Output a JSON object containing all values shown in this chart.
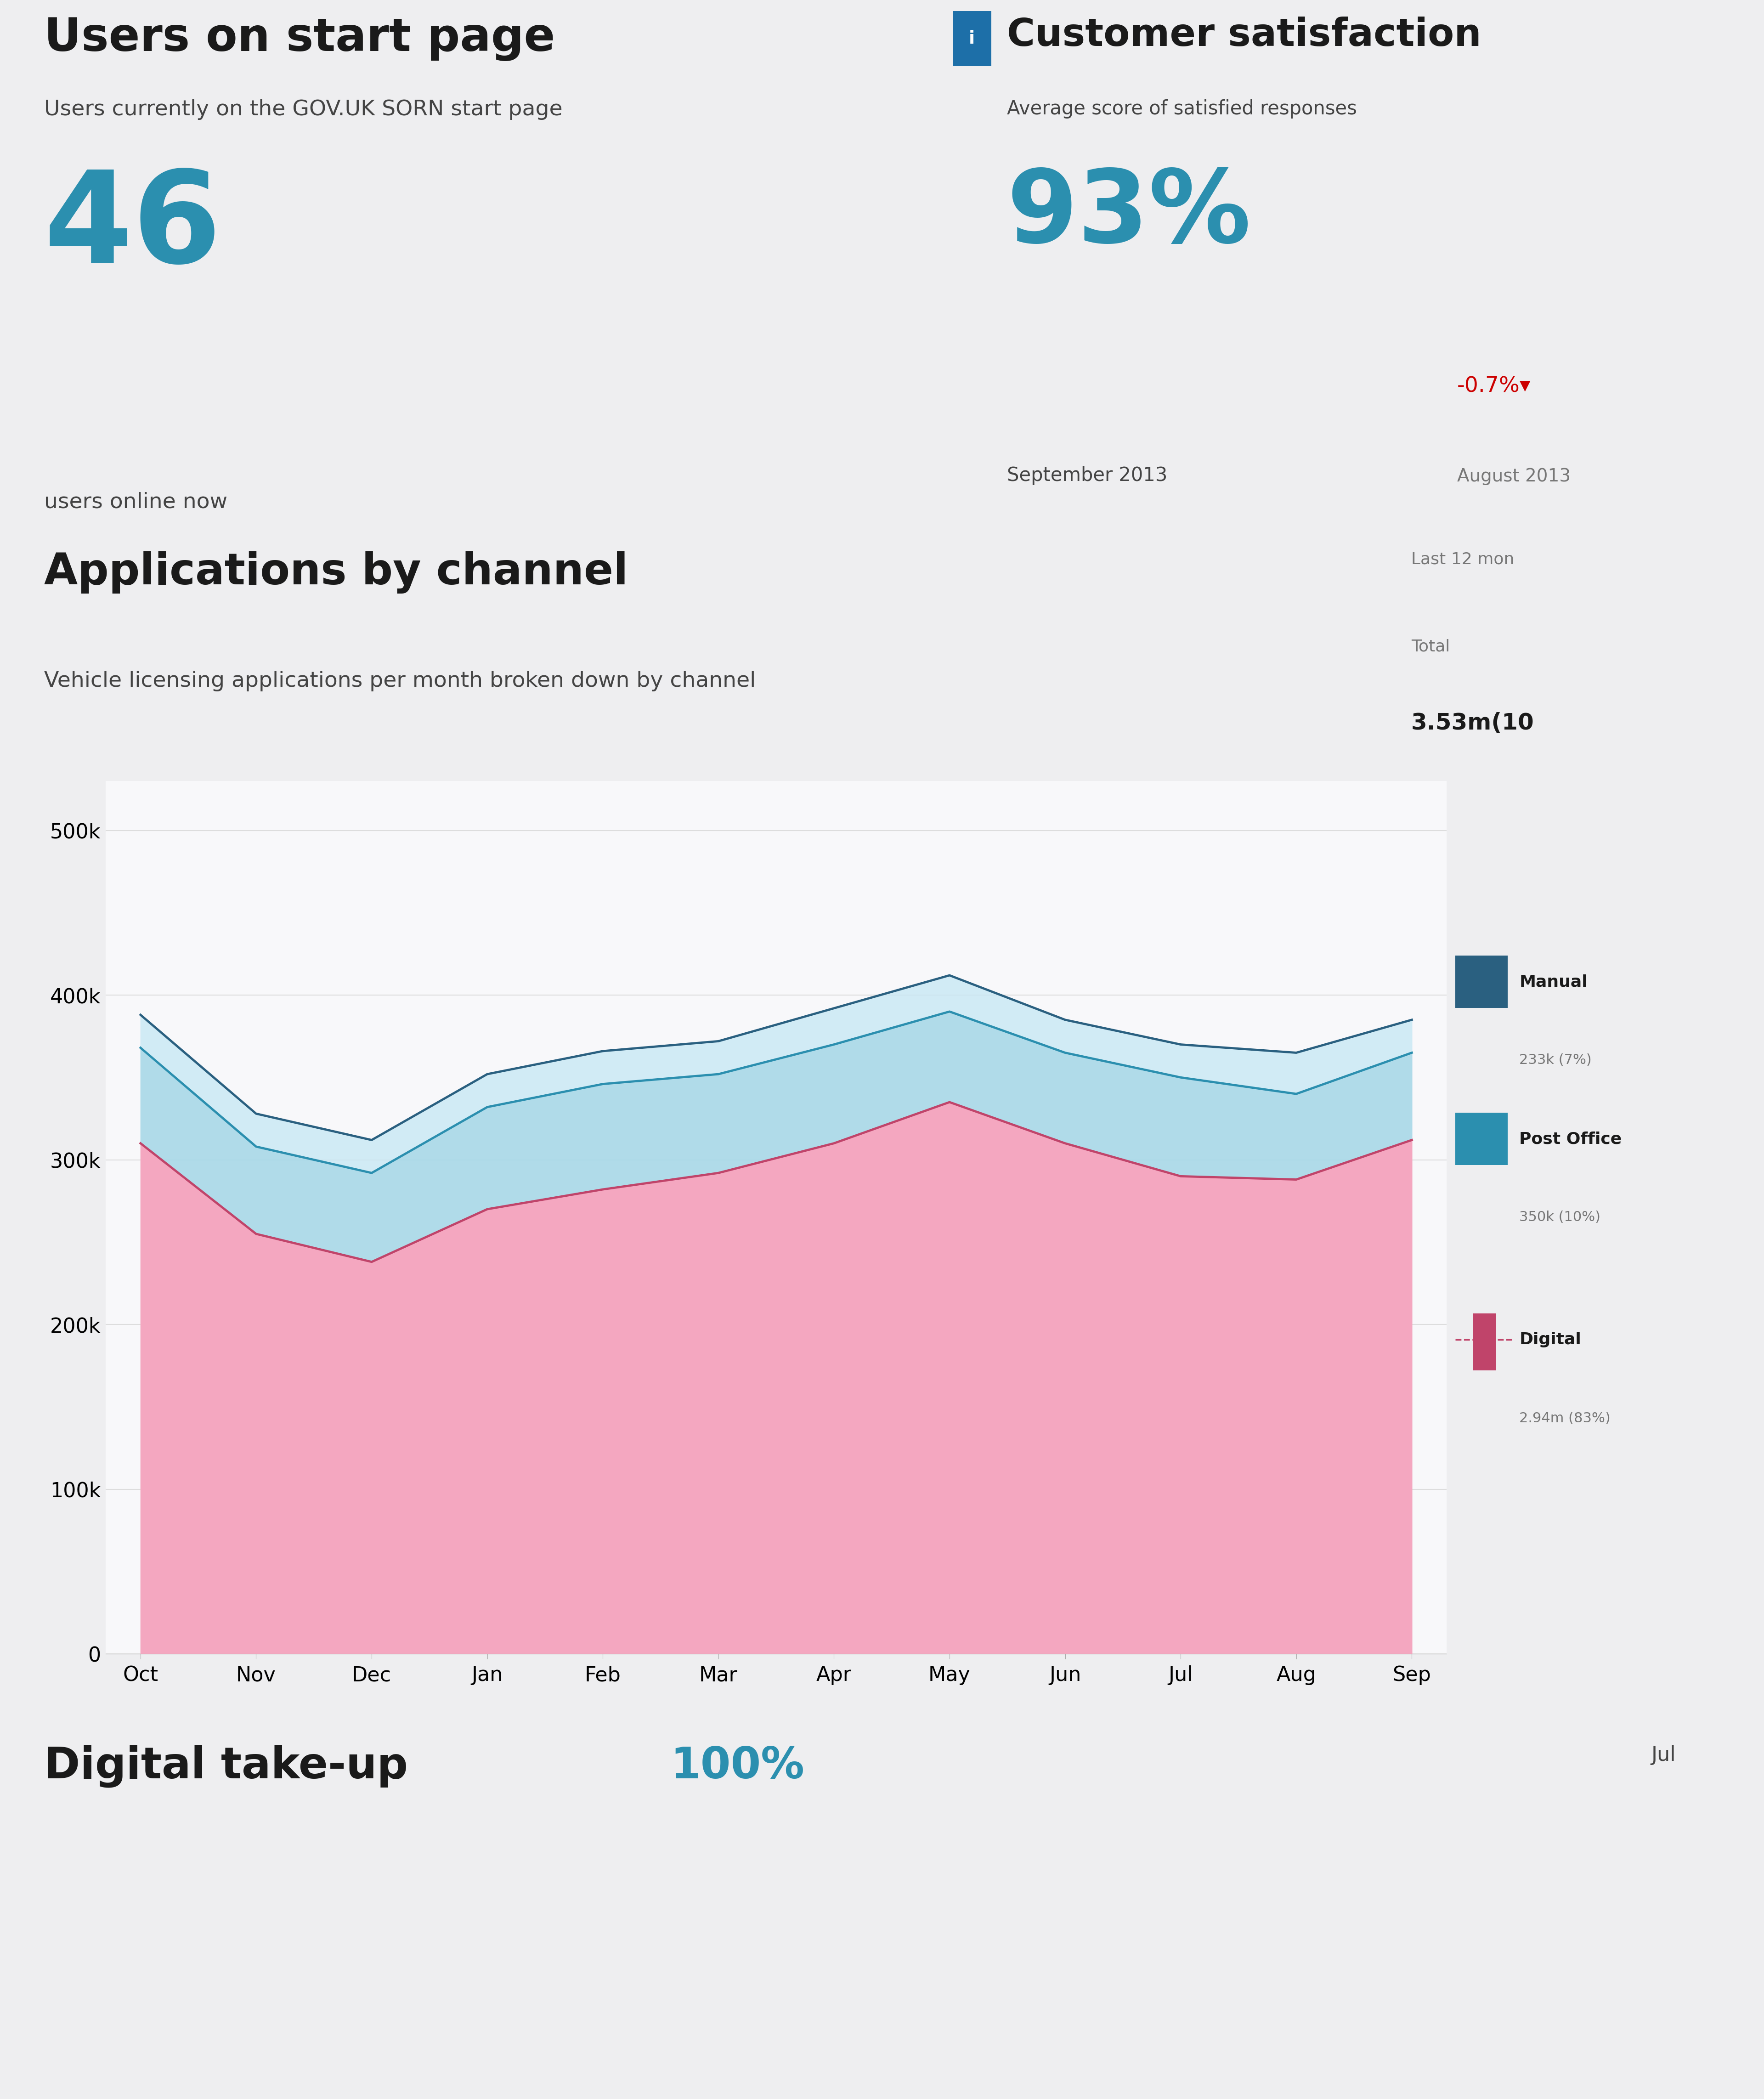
{
  "bg_color": "#eeeef0",
  "white": "#f8f8fa",
  "teal_color": "#2B8FAF",
  "dark_text": "#1a1a1a",
  "mid_text": "#444444",
  "light_text": "#777777",
  "red_text": "#cc0000",
  "info_blue": "#1d6fa8",
  "section1_title": "Users on start page",
  "section1_subtitle": "Users currently on the GOV.UK SORN start page",
  "section1_value": "46",
  "section1_label": "users online now",
  "section2_title": "Customer satisfaction",
  "section2_subtitle": "Average score of satisfied responses",
  "section2_value": "93%",
  "section2_date": "September 2013",
  "section2_change": "-0.7%▾",
  "section2_change_label": "August 2013",
  "chart_title": "Applications by channel",
  "chart_subtitle": "Vehicle licensing applications per month broken down by channel",
  "chart_note": "Last 12 mon",
  "chart_total_label": "Total",
  "chart_total_value": "3.53m",
  "chart_total_suffix": "(10",
  "x_labels": [
    "Oct",
    "Nov",
    "Dec",
    "Jan",
    "Feb",
    "Mar",
    "Apr",
    "May",
    "Jun",
    "Jul",
    "Aug",
    "Sep"
  ],
  "y_ticks": [
    0,
    100000,
    200000,
    300000,
    400000,
    500000
  ],
  "y_tick_labels": [
    "0",
    "100k",
    "200k",
    "300k",
    "400k",
    "500k"
  ],
  "digital_data": [
    310000,
    255000,
    238000,
    270000,
    282000,
    292000,
    310000,
    335000,
    310000,
    290000,
    288000,
    312000
  ],
  "post_office_data": [
    368000,
    308000,
    292000,
    332000,
    346000,
    352000,
    370000,
    390000,
    365000,
    350000,
    340000,
    365000
  ],
  "manual_data": [
    388000,
    328000,
    312000,
    352000,
    366000,
    372000,
    392000,
    412000,
    385000,
    370000,
    365000,
    385000
  ],
  "digital_fill": "#f4a7c0",
  "digital_line": "#c0446a",
  "post_office_fill": "#a8d8e8",
  "post_office_line": "#2b8faf",
  "manual_fill": "#c8e8f4",
  "manual_line": "#2a6080",
  "legend_manual_label": "Manual",
  "legend_manual_value": "233k (7%)",
  "legend_post_label": "Post Office",
  "legend_post_value": "350k (10%)",
  "legend_digital_label": "Digital",
  "legend_digital_value": "2.94m (83%)",
  "bottom_title": "Digital take-up",
  "bottom_value": "100%",
  "bottom_right_label": "Jul"
}
